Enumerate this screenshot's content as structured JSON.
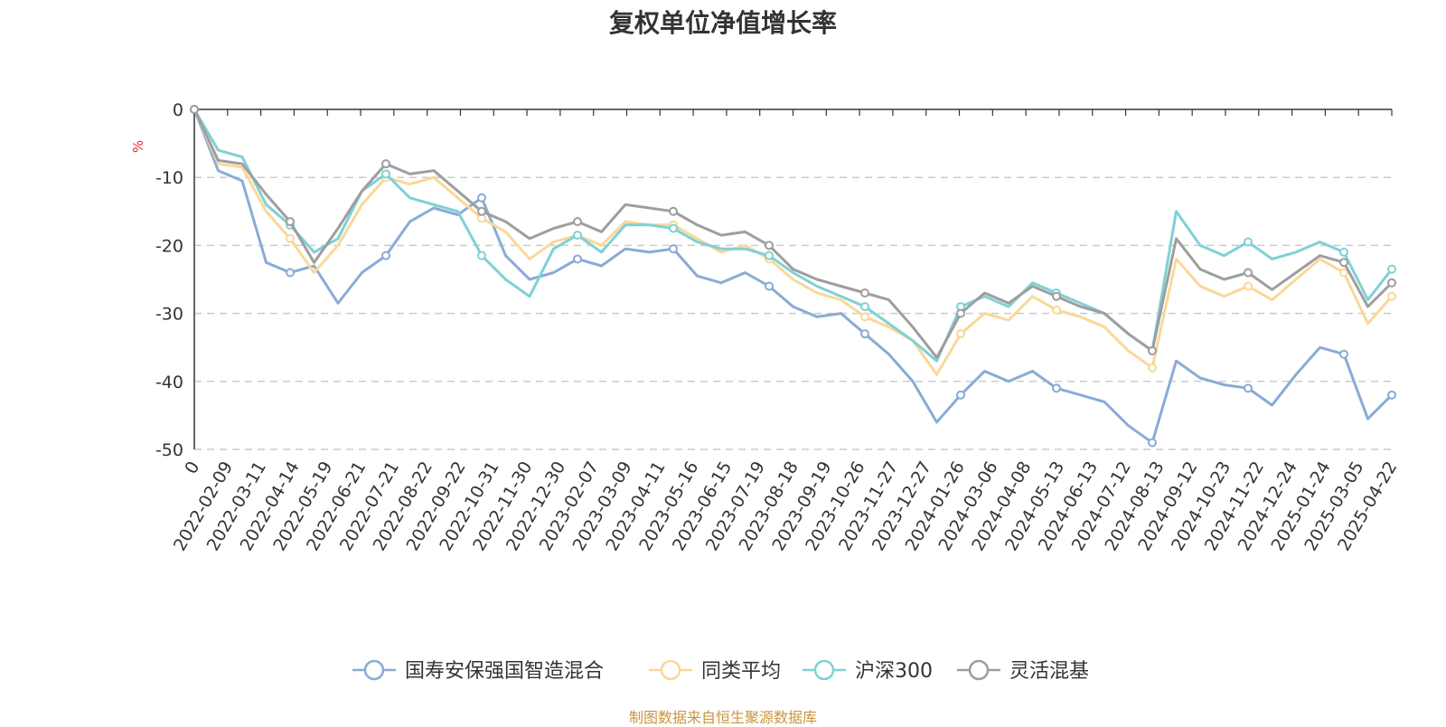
{
  "title": "复权单位净值增长率",
  "source_note": "制图数据来自恒生聚源数据库",
  "chart_data": {
    "type": "line",
    "title": "复权单位净值增长率",
    "ylabel": "%",
    "ylim": [
      -50,
      0
    ],
    "yticks": [
      "0",
      "-10",
      "-20",
      "-30",
      "-40",
      "-50"
    ],
    "grid": "horizontal dashed",
    "legend_position": "bottom",
    "x_tick_labels": [
      "0",
      "2022-02-09",
      "2022-03-11",
      "2022-04-14",
      "2022-05-19",
      "2022-06-21",
      "2022-07-21",
      "2022-08-22",
      "2022-09-22",
      "2022-10-31",
      "2022-11-30",
      "2022-12-30",
      "2023-02-07",
      "2023-03-09",
      "2023-04-11",
      "2023-05-16",
      "2023-06-15",
      "2023-07-19",
      "2023-08-18",
      "2023-09-19",
      "2023-10-26",
      "2023-11-27",
      "2023-12-27",
      "2024-01-26",
      "2024-03-06",
      "2024-04-08",
      "2024-05-13",
      "2024-06-13",
      "2024-07-12",
      "2024-08-13",
      "2024-09-12",
      "2024-10-23",
      "2024-11-22",
      "2024-12-24",
      "2025-01-24",
      "2025-03-05",
      "2025-04-22"
    ],
    "series": [
      {
        "name": "国寿安保强国智造混合",
        "color": "#8aabd6",
        "values": [
          0,
          -9,
          -10.5,
          -22.5,
          -24,
          -23,
          -28.5,
          -24,
          -21.5,
          -16.5,
          -14.5,
          -15.5,
          -13,
          -21.5,
          -25,
          -24,
          -22,
          -23,
          -20.5,
          -21,
          -20.5,
          -24.5,
          -25.5,
          -24,
          -26,
          -29,
          -30.5,
          -30,
          -33,
          -36,
          -40,
          -46,
          -42,
          -38.5,
          -40,
          -38.5,
          -41,
          -42,
          -43,
          -46.5,
          -49,
          -37,
          -39.5,
          -40.5,
          -41,
          -43.5,
          -39,
          -35,
          -36,
          -45.5,
          -42
        ]
      },
      {
        "name": "同类平均",
        "color": "#f9d899",
        "values": [
          0,
          -8,
          -8.5,
          -15,
          -19,
          -24,
          -20,
          -14,
          -10,
          -11,
          -10,
          -13,
          -16,
          -18,
          -22,
          -19.5,
          -18.5,
          -20,
          -16.5,
          -17,
          -17,
          -19,
          -21,
          -20,
          -22,
          -25,
          -27,
          -28,
          -30.5,
          -32,
          -34,
          -39,
          -33,
          -30,
          -31,
          -27.5,
          -29.5,
          -30.5,
          -32,
          -35.5,
          -38,
          -22,
          -26,
          -27.5,
          -26,
          -28,
          -25,
          -22,
          -24,
          -31.5,
          -27.5
        ]
      },
      {
        "name": "沪深300",
        "color": "#7fd1d6",
        "values": [
          0,
          -6,
          -7,
          -14,
          -17,
          -21,
          -19,
          -12,
          -9.5,
          -13,
          -14,
          -15,
          -21.5,
          -25,
          -27.5,
          -20.5,
          -18.5,
          -21,
          -17,
          -17,
          -17.5,
          -19.5,
          -20.5,
          -20.5,
          -21.5,
          -24,
          -26,
          -27.5,
          -29,
          -31.5,
          -34,
          -37,
          -29,
          -27.5,
          -29,
          -25.5,
          -27,
          -28.5,
          -30,
          -33,
          -35.5,
          -15,
          -20,
          -21.5,
          -19.5,
          -22,
          -21,
          -19.5,
          -21,
          -28,
          -23.5
        ]
      },
      {
        "name": "灵活混基",
        "color": "#9e9e9e",
        "values": [
          0,
          -7.5,
          -8,
          -12.5,
          -16.5,
          -22.5,
          -17.5,
          -12,
          -8,
          -9.5,
          -9,
          -12,
          -15,
          -16.5,
          -19,
          -17.5,
          -16.5,
          -18,
          -14,
          -14.5,
          -15,
          -17,
          -18.5,
          -18,
          -20,
          -23.5,
          -25,
          -26,
          -27,
          -28,
          -32,
          -36.5,
          -30,
          -27,
          -28.5,
          -26,
          -27.5,
          -29,
          -30,
          -33,
          -35.5,
          -19,
          -23.5,
          -25,
          -24,
          -26.5,
          -24,
          -21.5,
          -22.5,
          -29,
          -25.5
        ]
      }
    ]
  }
}
